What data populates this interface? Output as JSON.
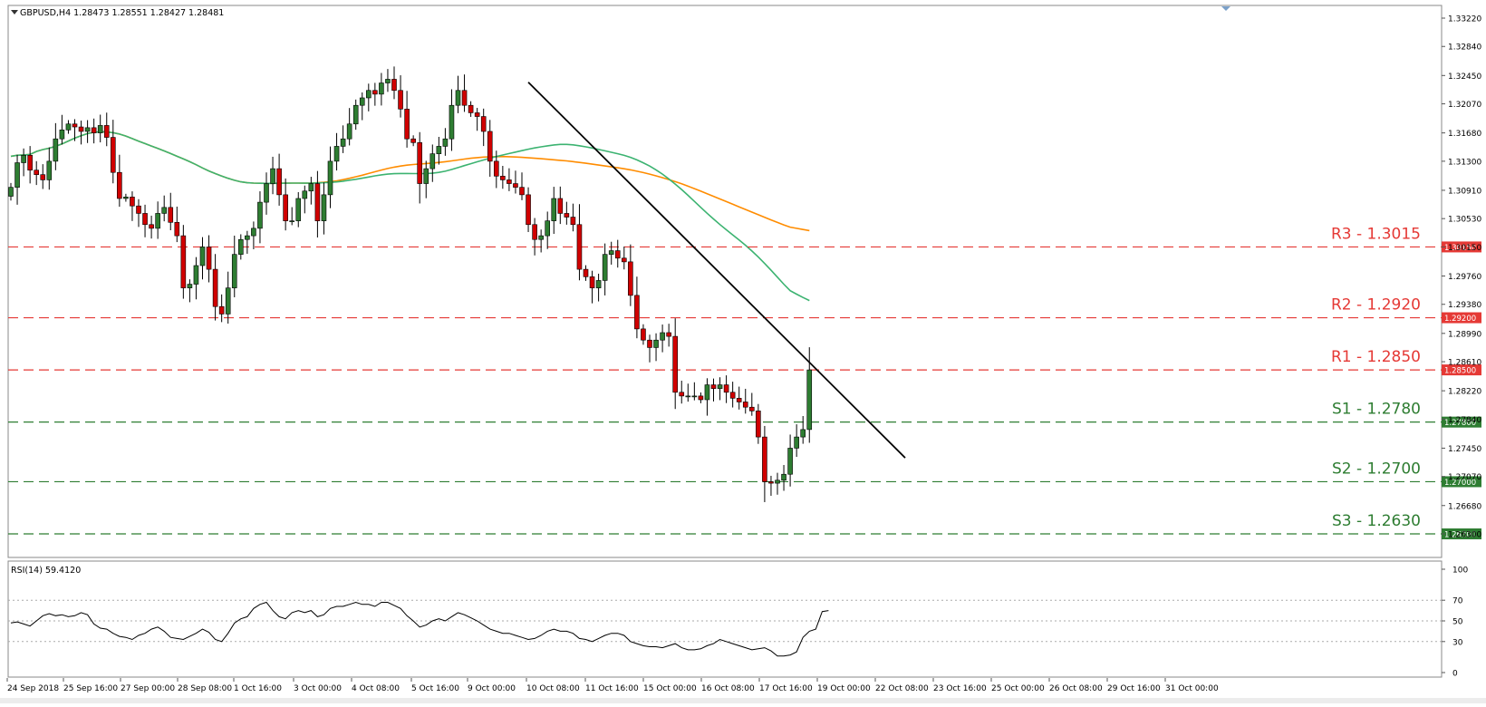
{
  "header": {
    "symbol_line": "GBPUSD,H4  1.28473 1.28551 1.28427 1.28481",
    "rsi_label": "RSI(14) 59.4120"
  },
  "colors": {
    "bull": "#2e7d32",
    "bear": "#d00000",
    "ma_fast": "#3cb371",
    "ma_slow": "#ff8c00",
    "resistance": "#e53935",
    "support": "#2e7d32",
    "trendline": "#000000"
  },
  "chart_data": [
    {
      "type": "candlestick",
      "title": "GBPUSD,H4",
      "ylim": [
        1.263,
        1.3322
      ],
      "y_ticks": [
        "1.33220",
        "1.32840",
        "1.32450",
        "1.32070",
        "1.31680",
        "1.31300",
        "1.30910",
        "1.30530",
        "1.30150",
        "1.29760",
        "1.29380",
        "1.28990",
        "1.28610",
        "1.28220",
        "1.27840",
        "1.27450",
        "1.27070",
        "1.26680",
        "1.26300"
      ],
      "x_ticks": [
        "24 Sep 2018",
        "25 Sep 16:00",
        "27 Sep 00:00",
        "28 Sep 08:00",
        "1 Oct 16:00",
        "3 Oct 00:00",
        "4 Oct 08:00",
        "5 Oct 16:00",
        "9 Oct 00:00",
        "10 Oct 08:00",
        "11 Oct 16:00",
        "15 Oct 00:00",
        "16 Oct 08:00",
        "17 Oct 16:00",
        "19 Oct 00:00",
        "22 Oct 08:00",
        "23 Oct 16:00",
        "25 Oct 00:00",
        "26 Oct 08:00",
        "29 Oct 16:00",
        "31 Oct 00:00"
      ],
      "close_path": [
        1.3095,
        1.3128,
        1.3138,
        1.3118,
        1.3112,
        1.3105,
        1.313,
        1.316,
        1.3172,
        1.318,
        1.3176,
        1.317,
        1.3175,
        1.3168,
        1.3178,
        1.3162,
        1.3115,
        1.308,
        1.3082,
        1.307,
        1.306,
        1.3045,
        1.304,
        1.306,
        1.3068,
        1.3048,
        1.303,
        1.296,
        1.2965,
        1.299,
        1.3015,
        1.2985,
        1.2935,
        1.2925,
        1.296,
        1.3005,
        1.3025,
        1.303,
        1.304,
        1.3075,
        1.31,
        1.312,
        1.3085,
        1.305,
        1.305,
        1.308,
        1.309,
        1.31,
        1.305,
        1.3085,
        1.313,
        1.315,
        1.316,
        1.318,
        1.3205,
        1.3215,
        1.3225,
        1.322,
        1.3235,
        1.324,
        1.3225,
        1.32,
        1.316,
        1.3155,
        1.31,
        1.312,
        1.314,
        1.315,
        1.316,
        1.3205,
        1.3225,
        1.3205,
        1.3195,
        1.319,
        1.317,
        1.313,
        1.311,
        1.3105,
        1.31,
        1.3095,
        1.3085,
        1.3045,
        1.3025,
        1.303,
        1.305,
        1.308,
        1.306,
        1.3055,
        1.3045,
        1.2985,
        1.2975,
        1.296,
        1.297,
        1.3005,
        1.301,
        1.3,
        1.2995,
        1.295,
        1.2905,
        1.289,
        1.288,
        1.289,
        1.29,
        1.2895,
        1.282,
        1.2815,
        1.2815,
        1.2815,
        1.281,
        1.283,
        1.2825,
        1.283,
        1.282,
        1.2812,
        1.2807,
        1.28,
        1.2795,
        1.276,
        1.27,
        1.2698,
        1.2702,
        1.271,
        1.2745,
        1.276,
        1.277,
        1.285
      ],
      "annotations": {
        "resistance": [
          {
            "label": "R3 - 1.3015",
            "price": 1.3015,
            "tag": "1.30150"
          },
          {
            "label": "R2 - 1.2920",
            "price": 1.292,
            "tag": "1.29200"
          },
          {
            "label": "R1 - 1.2850",
            "price": 1.285,
            "tag": "1.28500"
          }
        ],
        "support": [
          {
            "label": "S1 - 1.2780",
            "price": 1.278,
            "tag": "1.27800"
          },
          {
            "label": "S2 - 1.2700",
            "price": 1.27,
            "tag": "1.27000"
          },
          {
            "label": "S3 - 1.2630",
            "price": 1.263,
            "tag": "1.26300"
          }
        ],
        "trendline": {
          "from_bar": 81,
          "from_price": 1.3236,
          "to_bar": 140,
          "to_price": 1.2732
        }
      }
    },
    {
      "type": "line",
      "title": "RSI(14) 59.4120",
      "ylim": [
        0,
        100
      ],
      "y_ticks": [
        "100",
        "70",
        "50",
        "30",
        "0"
      ],
      "levels": [
        70,
        50,
        30
      ],
      "values": [
        48,
        49,
        47,
        45,
        50,
        55,
        57,
        55,
        56,
        54,
        55,
        58,
        56,
        47,
        43,
        42,
        38,
        35,
        34,
        32,
        36,
        38,
        42,
        44,
        40,
        34,
        33,
        32,
        35,
        38,
        42,
        39,
        32,
        30,
        38,
        48,
        52,
        54,
        62,
        66,
        68,
        60,
        54,
        52,
        58,
        60,
        58,
        60,
        54,
        56,
        62,
        64,
        64,
        66,
        68,
        66,
        66,
        64,
        68,
        68,
        65,
        62,
        55,
        50,
        44,
        46,
        50,
        52,
        50,
        54,
        58,
        56,
        53,
        50,
        46,
        42,
        40,
        38,
        38,
        36,
        34,
        32,
        33,
        36,
        40,
        42,
        40,
        40,
        38,
        33,
        32,
        30,
        33,
        36,
        38,
        38,
        36,
        30,
        28,
        26,
        25,
        25,
        24,
        26,
        28,
        24,
        22,
        22,
        23,
        26,
        28,
        32,
        30,
        28,
        26,
        24,
        22,
        23,
        24,
        21,
        16,
        16,
        17,
        20,
        34,
        40,
        42,
        59,
        60
      ],
      "current": 59.412
    }
  ]
}
